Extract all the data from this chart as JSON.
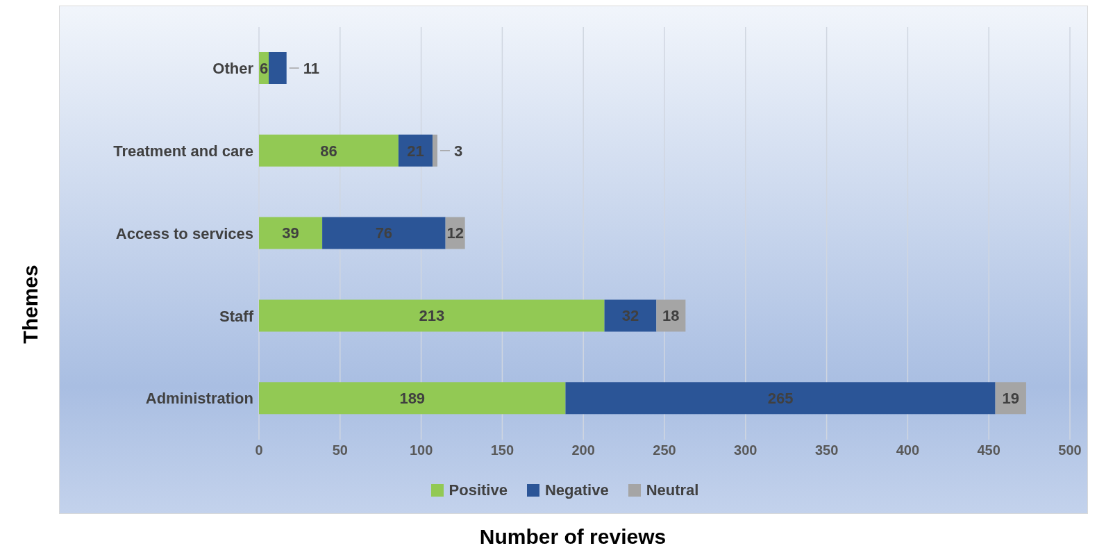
{
  "chart_data": {
    "type": "bar",
    "orientation": "horizontal",
    "stacked": true,
    "xlabel": "Number of reviews",
    "ylabel": "Themes",
    "categories": [
      "Other",
      "Treatment and care",
      "Access to services",
      "Staff",
      "Administration"
    ],
    "series": [
      {
        "name": "Positive",
        "color": "#92c954",
        "values": [
          6,
          86,
          39,
          213,
          189
        ]
      },
      {
        "name": "Negative",
        "color": "#2b5597",
        "values": [
          11,
          21,
          76,
          32,
          265
        ]
      },
      {
        "name": "Neutral",
        "color": "#a5a5a5",
        "values": [
          null,
          3,
          12,
          18,
          19
        ]
      }
    ],
    "xlim": [
      0,
      500
    ],
    "xticks": [
      0,
      50,
      100,
      150,
      200,
      250,
      300,
      350,
      400,
      450,
      500
    ],
    "grid": "x",
    "legend": "bottom",
    "data_labels": true
  }
}
